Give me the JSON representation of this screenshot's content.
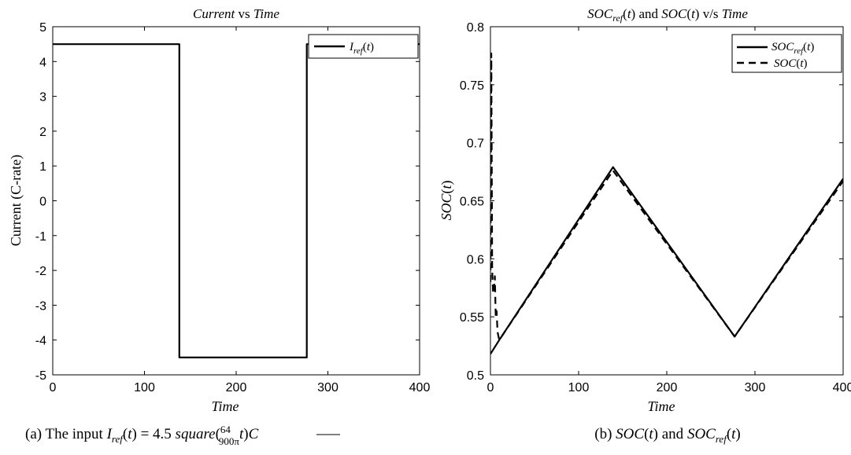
{
  "chart_data": [
    {
      "type": "line",
      "title": "Current vs Time",
      "title_parts": [
        {
          "text": "Current",
          "italic": true
        },
        {
          "text": " vs ",
          "italic": false
        },
        {
          "text": "Time",
          "italic": true
        }
      ],
      "xlabel": "Time",
      "ylabel": "Current (C-rate)",
      "xlim": [
        0,
        400
      ],
      "ylim": [
        -5,
        5
      ],
      "xticks": [
        "0",
        "100",
        "200",
        "300",
        "400"
      ],
      "yticks": [
        "-5",
        "-4",
        "-3",
        "-2",
        "-1",
        "0",
        "1",
        "2",
        "3",
        "4",
        "5"
      ],
      "grid": false,
      "legend_position": "top-right",
      "series": [
        {
          "name": "I_ref(t)",
          "style": "solid",
          "x": [
            0,
            138,
            138,
            277,
            277,
            400
          ],
          "y": [
            4.5,
            4.5,
            -4.5,
            -4.5,
            4.5,
            4.5
          ]
        }
      ],
      "caption": "(a) The input I_ref(t) = 4.5 square(64/900π t)C"
    },
    {
      "type": "line",
      "title": "SOC_ref(t) and SOC(t) v/s Time",
      "xlabel": "Time",
      "ylabel": "SOC(t)",
      "xlim": [
        0,
        400
      ],
      "ylim": [
        0.5,
        0.8
      ],
      "xticks": [
        "0",
        "100",
        "200",
        "300",
        "400"
      ],
      "yticks": [
        "0.5",
        "0.55",
        "0.6",
        "0.65",
        "0.7",
        "0.75",
        "0.8"
      ],
      "grid": false,
      "legend_position": "top-right",
      "series": [
        {
          "name": "SOC_ref(t)",
          "style": "solid",
          "x": [
            0,
            10,
            139,
            277,
            400
          ],
          "y": [
            0.518,
            0.53,
            0.679,
            0.533,
            0.669
          ]
        },
        {
          "name": "SOC(t)",
          "style": "dashed",
          "x": [
            0,
            1,
            2,
            3,
            4,
            5,
            6,
            7,
            8,
            10,
            139,
            277,
            400
          ],
          "y": [
            0.58,
            0.777,
            0.59,
            0.57,
            0.575,
            0.585,
            0.55,
            0.555,
            0.537,
            0.53,
            0.676,
            0.533,
            0.667
          ]
        }
      ],
      "caption": "(b) SOC(t) and SOC_ref(t)"
    }
  ]
}
